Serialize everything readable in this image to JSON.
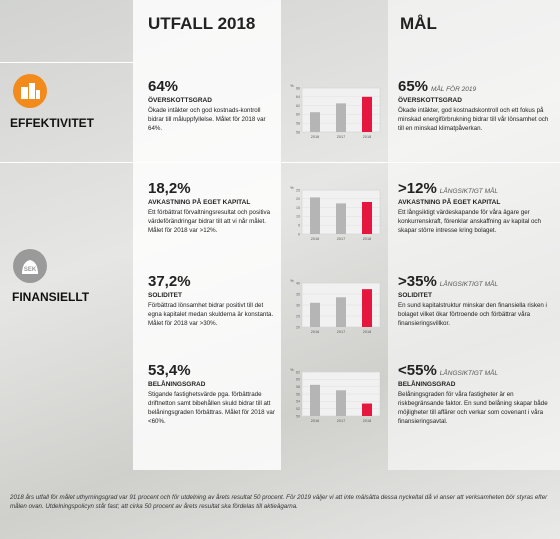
{
  "header": {
    "col1": "UTFALL 2018",
    "col2": "MÅL"
  },
  "sections": [
    {
      "label": "EFFEKTIVITET"
    },
    {
      "label": "FINANSIELLT",
      "icon_text": "SEK"
    }
  ],
  "kpis": [
    {
      "value": "64%",
      "title": "ÖVERSKOTTSGRAD",
      "text": "Ökade intäkter och god kostnads-kontroll bidrar till måluppfyllelse. Målet för 2018 var 64%.",
      "goal": "65%",
      "goal_note": "MÅL FÖR 2019",
      "goal_title": "ÖVERSKOTTSGRAD",
      "goal_text": "Ökade intäkter, god kostnadskontroll och ett fokus på minskad energiförbrukning bidrar till vår lönsamhet och till en minskad klimatpåverkan.",
      "chart": {
        "type": "bar",
        "unit": "%",
        "categories": [
          "2016",
          "2017",
          "2018"
        ],
        "values": [
          60.5,
          62.5,
          64
        ],
        "colors": [
          "#b5b5b5",
          "#b5b5b5",
          "#e5173f"
        ],
        "ylim": [
          56,
          66
        ],
        "yticks": [
          56,
          58,
          60,
          62,
          64,
          66
        ]
      }
    },
    {
      "value": "18,2%",
      "title": "AVKASTNING PÅ EGET KAPITAL",
      "text": "Ett förbättrat förvaltningsresultat och positiva värdeförändringar bidrar till att vi når målet. Målet för 2018 var >12%.",
      "goal": ">12%",
      "goal_note": "LÅNGSIKTIGT MÅL",
      "goal_title": "AVKASTNING PÅ EGET KAPITAL",
      "goal_text": "Ett långsiktigt värdeskapande för våra ägare ger konkurrenskraft, förenklar anskaffning av kapital och skapar större intresse kring bolaget.",
      "chart": {
        "type": "bar",
        "unit": "%",
        "categories": [
          "2016",
          "2017",
          "2018"
        ],
        "values": [
          20.8,
          17.4,
          18.2
        ],
        "colors": [
          "#b5b5b5",
          "#b5b5b5",
          "#e5173f"
        ],
        "ylim": [
          0,
          25
        ],
        "yticks": [
          0,
          5,
          10,
          15,
          20,
          25
        ]
      }
    },
    {
      "value": "37,2%",
      "title": "SOLIDITET",
      "text": "Förbättrad lönsamhet bidrar positivt till det egna kapitalet medan skulderna är konstanta. Målet för 2018 var >30%.",
      "goal": ">35%",
      "goal_note": "LÅNGSIKTIGT MÅL",
      "goal_title": "SOLIDITET",
      "goal_text": "En sund kapitalstruktur minskar den finansiella risken i bolaget vilket ökar förtroende och förbättrar våra finansieringsvillkor.",
      "chart": {
        "type": "bar",
        "unit": "%",
        "categories": [
          "2016",
          "2017",
          "2018"
        ],
        "values": [
          31,
          33.5,
          37.2
        ],
        "colors": [
          "#b5b5b5",
          "#b5b5b5",
          "#e5173f"
        ],
        "ylim": [
          20,
          40
        ],
        "yticks": [
          20,
          25,
          30,
          35,
          40
        ]
      }
    },
    {
      "value": "53,4%",
      "title": "BELÅNINGSGRAD",
      "text": "Stigande fastighetsvärde pga. förbättrade driftnetton samt bibehållen skuld bidrar till att belåningsgraden förbättras. Målet för 2018 var <60%.",
      "goal": "<55%",
      "goal_note": "LÅNGSIKTIGT MÅL",
      "goal_title": "BELÅNINGSGRAD",
      "goal_text": "Belåningsgraden för våra fastigheter är en riskbegränsande faktor. En sund belåning skapar både möjligheter till affärer och verkar som covenant i våra finansieringsavtal.",
      "chart": {
        "type": "bar",
        "unit": "%",
        "categories": [
          "2016",
          "2017",
          "2018"
        ],
        "values": [
          58.5,
          57,
          53.4
        ],
        "colors": [
          "#b5b5b5",
          "#b5b5b5",
          "#e5173f"
        ],
        "ylim": [
          50,
          62
        ],
        "yticks": [
          50,
          52,
          54,
          56,
          58,
          60,
          62
        ]
      }
    }
  ],
  "footnote": "2018 års utfall för målet uthyrningsgrad var 91 procent och för utdelning av årets resultat 50 procent. För 2019 väljer vi att inte mälsätta dessa nyckeltal då vi anser att verksamheten bör styras efter målen ovan. Utdelningspolicyn står fast; att cirka 50 procent av årets resultat ska fördelas till aktieägarna."
}
